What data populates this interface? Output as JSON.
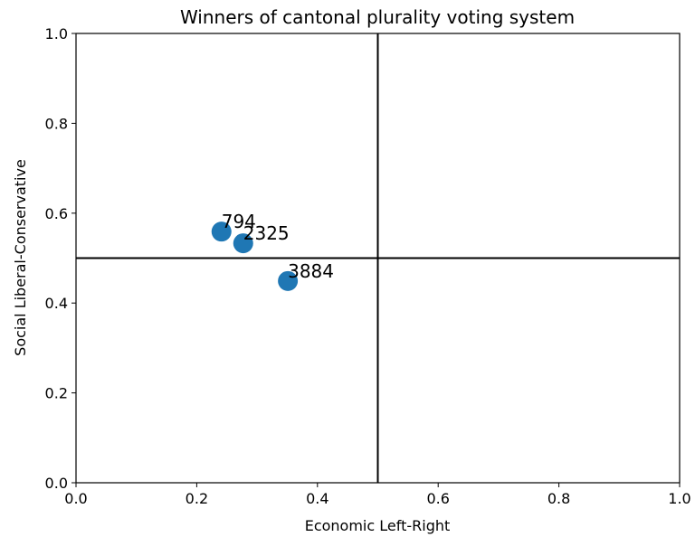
{
  "chart_data": {
    "type": "scatter",
    "title": "Winners of cantonal plurality voting system",
    "xlabel": "Economic Left-Right",
    "ylabel": "Social Liberal-Conservative",
    "xlim": [
      0.0,
      1.0
    ],
    "ylim": [
      0.0,
      1.0
    ],
    "xticks": [
      0.0,
      0.2,
      0.4,
      0.6,
      0.8,
      1.0
    ],
    "yticks": [
      0.0,
      0.2,
      0.4,
      0.6,
      0.8,
      1.0
    ],
    "xtick_labels": [
      "0.0",
      "0.2",
      "0.4",
      "0.6",
      "0.8",
      "1.0"
    ],
    "ytick_labels": [
      "0.0",
      "0.2",
      "0.4",
      "0.6",
      "0.8",
      "1.0"
    ],
    "grid": false,
    "reference_lines": {
      "x": 0.5,
      "y": 0.5
    },
    "marker_color": "#1f77b4",
    "points": [
      {
        "label": "794",
        "x": 0.241,
        "y": 0.559
      },
      {
        "label": "2325",
        "x": 0.277,
        "y": 0.533
      },
      {
        "label": "3884",
        "x": 0.351,
        "y": 0.449
      }
    ]
  }
}
